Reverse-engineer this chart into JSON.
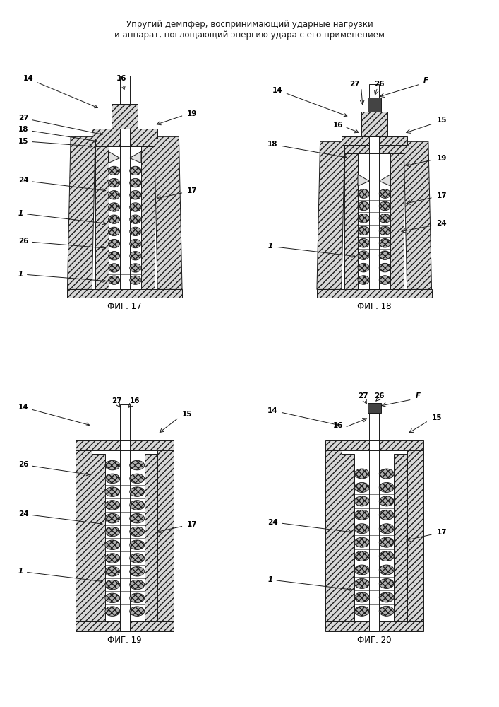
{
  "title_line1": "Упругий демпфер, воспринимающий ударные нагрузки",
  "title_line2": "и аппарат, поглощающий энергию удара с его применением",
  "fig_labels": [
    "ФИГ. 17",
    "ФИГ. 18",
    "ФИГ. 19",
    "ФИГ. 20"
  ],
  "background": "#ffffff",
  "line_color": "#1a1a1a",
  "hatch_fill": "#d8d8d8",
  "spring_fill": "#b0b0b0",
  "rod_fill": "#f0f0f0",
  "force_fill": "#444444"
}
